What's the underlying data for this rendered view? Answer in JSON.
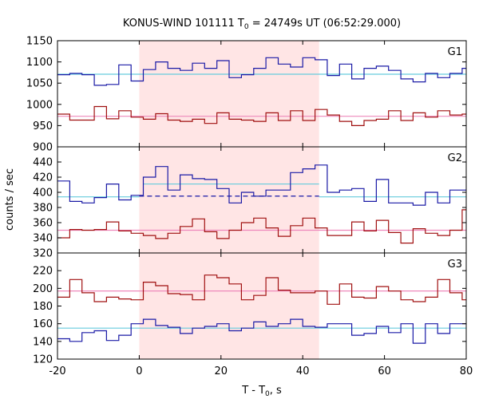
{
  "chart_data": {
    "type": "line",
    "title_main": "KONUS-WIND 101111 T",
    "title_sub": "0",
    "title_rest": " = 24749s UT (06:52:29.000)",
    "xlabel_main": "T - T",
    "xlabel_sub": "0",
    "xlabel_rest": ", s",
    "ylabel": "counts / sec",
    "xlim": [
      -20,
      80
    ],
    "xticks": [
      -20,
      0,
      20,
      40,
      60,
      80
    ],
    "x_tick_labels": [
      "-20",
      "0",
      "20",
      "40",
      "60",
      "80"
    ],
    "shaded_interval": [
      0,
      44
    ],
    "colors": {
      "blue": "#1a1aa6",
      "red": "#a01010",
      "cyan": "#66ccdd",
      "pink": "#ee88bb",
      "shade": "#ffe5e5"
    },
    "panels": [
      {
        "label": "G1",
        "ylim": [
          900,
          1150
        ],
        "yticks": [
          900,
          950,
          1000,
          1050,
          1100,
          1150
        ],
        "y_tick_labels": [
          "900",
          "950",
          "1000",
          "1050",
          "1100",
          "1150"
        ],
        "bin_edges": [
          -20,
          -17,
          -14,
          -11,
          -8,
          -5,
          -2,
          1,
          4,
          7,
          10,
          13,
          16,
          19,
          22,
          25,
          28,
          31,
          34,
          37,
          40,
          43,
          46,
          49,
          52,
          55,
          58,
          61,
          64,
          67,
          70,
          73,
          76,
          79,
          80
        ],
        "series": [
          {
            "color": "blue",
            "values": [
              1070,
              1073,
              1070,
              1045,
              1047,
              1093,
              1055,
              1082,
              1100,
              1085,
              1080,
              1097,
              1085,
              1103,
              1063,
              1070,
              1085,
              1110,
              1095,
              1088,
              1110,
              1105,
              1068,
              1095,
              1060,
              1085,
              1090,
              1080,
              1060,
              1053,
              1073,
              1063,
              1073,
              1085
            ]
          },
          {
            "color": "red",
            "values": [
              977,
              963,
              963,
              995,
              966,
              985,
              970,
              965,
              978,
              963,
              960,
              965,
              955,
              980,
              965,
              963,
              960,
              980,
              962,
              985,
              962,
              988,
              975,
              960,
              950,
              962,
              965,
              985,
              962,
              980,
              970,
              985,
              975,
              977
            ]
          }
        ],
        "fit_lines": [
          {
            "color": "cyan",
            "value": 1071,
            "style": "solid",
            "x_range": [
              -20,
              80
            ]
          },
          {
            "color": "pink",
            "value": 972,
            "style": "solid",
            "x_range": [
              -20,
              80
            ]
          }
        ]
      },
      {
        "label": "G2",
        "ylim": [
          320,
          460
        ],
        "yticks": [
          320,
          340,
          360,
          380,
          400,
          420,
          440
        ],
        "y_tick_labels": [
          "320",
          "340",
          "360",
          "380",
          "400",
          "420",
          "440"
        ],
        "bin_edges": [
          -20,
          -17,
          -14,
          -11,
          -8,
          -5,
          -2,
          1,
          4,
          7,
          10,
          13,
          16,
          19,
          22,
          25,
          28,
          31,
          34,
          37,
          40,
          43,
          46,
          49,
          52,
          55,
          58,
          61,
          64,
          67,
          70,
          73,
          76,
          79,
          80
        ],
        "series": [
          {
            "color": "blue",
            "values": [
              415,
              388,
              386,
              393,
              411,
              390,
              396,
              420,
              434,
              403,
              423,
              418,
              417,
              405,
              386,
              400,
              395,
              403,
              403,
              426,
              431,
              436,
              400,
              403,
              405,
              388,
              417,
              386,
              386,
              383,
              400,
              386,
              403,
              403
            ]
          },
          {
            "color": "red",
            "values": [
              340,
              351,
              350,
              351,
              361,
              349,
              346,
              343,
              339,
              346,
              355,
              365,
              348,
              339,
              350,
              360,
              366,
              353,
              342,
              356,
              366,
              353,
              343,
              343,
              361,
              349,
              363,
              347,
              333,
              352,
              346,
              343,
              350,
              377
            ]
          }
        ],
        "fit_lines": [
          {
            "color": "cyan",
            "value": 394,
            "style": "solid",
            "x_range": [
              -20,
              0
            ]
          },
          {
            "color": "cyan",
            "value": 411,
            "style": "solid",
            "x_range": [
              1,
              44
            ]
          },
          {
            "color": "cyan",
            "value": 394,
            "style": "solid",
            "x_range": [
              44,
              80
            ]
          },
          {
            "color": "blue",
            "value": 395,
            "style": "dashed",
            "x_range": [
              0,
              44
            ]
          },
          {
            "color": "pink",
            "value": 350,
            "style": "solid",
            "x_range": [
              -20,
              80
            ]
          }
        ]
      },
      {
        "label": "G3",
        "ylim": [
          120,
          240
        ],
        "yticks": [
          120,
          140,
          160,
          180,
          200,
          220
        ],
        "y_tick_labels": [
          "120",
          "140",
          "160",
          "180",
          "200",
          "220"
        ],
        "bin_edges": [
          -20,
          -17,
          -14,
          -11,
          -8,
          -5,
          -2,
          1,
          4,
          7,
          10,
          13,
          16,
          19,
          22,
          25,
          28,
          31,
          34,
          37,
          40,
          43,
          46,
          49,
          52,
          55,
          58,
          61,
          64,
          67,
          70,
          73,
          76,
          79,
          80
        ],
        "series": [
          {
            "color": "blue",
            "values": [
              143,
              140,
              150,
              152,
              141,
              147,
              160,
              165,
              158,
              156,
              149,
              155,
              157,
              160,
              152,
              155,
              162,
              157,
              160,
              165,
              157,
              156,
              160,
              160,
              147,
              149,
              157,
              150,
              160,
              138,
              160,
              149,
              160,
              160
            ]
          },
          {
            "color": "red",
            "values": [
              190,
              210,
              195,
              185,
              190,
              188,
              187,
              207,
              203,
              194,
              193,
              187,
              215,
              212,
              205,
              187,
              192,
              212,
              198,
              195,
              195,
              197,
              182,
              205,
              190,
              189,
              202,
              197,
              187,
              185,
              190,
              210,
              195,
              187
            ]
          }
        ],
        "fit_lines": [
          {
            "color": "cyan",
            "value": 155,
            "style": "solid",
            "x_range": [
              -20,
              80
            ]
          },
          {
            "color": "pink",
            "value": 197,
            "style": "solid",
            "x_range": [
              -20,
              80
            ]
          }
        ]
      }
    ]
  }
}
